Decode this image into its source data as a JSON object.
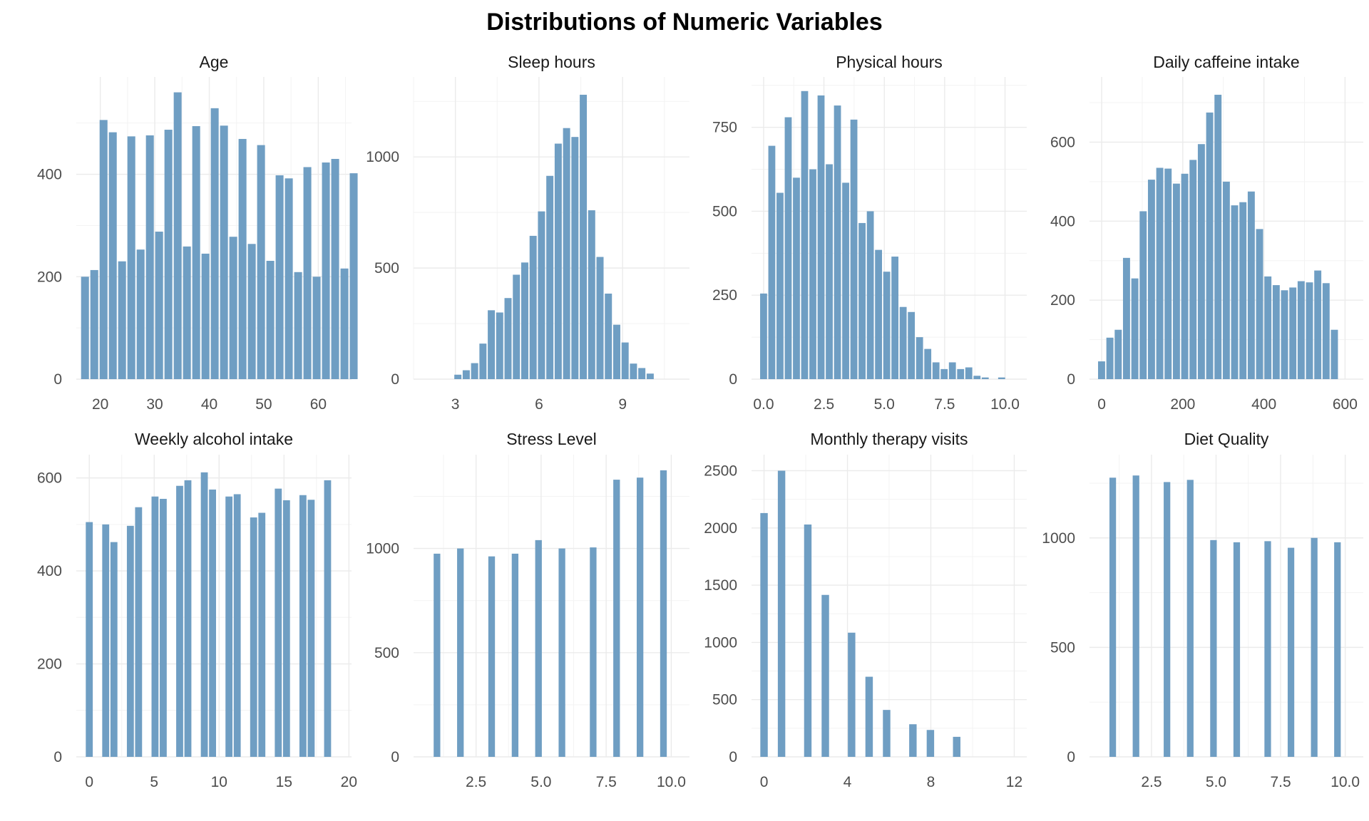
{
  "page_title": "Distributions of Numeric Variables",
  "colors": {
    "bar": "#6f9ec3",
    "grid": "#ebebeb",
    "background": "#ffffff"
  },
  "chart_data": [
    {
      "type": "bar",
      "title": "Age",
      "xlim": [
        15.6,
        66.1
      ],
      "ylim": [
        0,
        590
      ],
      "x_ticks": [
        20,
        30,
        40,
        50,
        60
      ],
      "y_ticks": [
        0,
        200,
        400
      ],
      "bin_start": 17.2,
      "bin_width": 1.7,
      "values": [
        200,
        213,
        506,
        482,
        230,
        474,
        253,
        476,
        288,
        487,
        560,
        259,
        494,
        245,
        529,
        495,
        278,
        469,
        264,
        457,
        231,
        398,
        392,
        209,
        414,
        200,
        423,
        430,
        216,
        402
      ]
    },
    {
      "type": "bar",
      "title": "Sleep hours",
      "xlim": [
        1.5,
        11.4
      ],
      "ylim": [
        0,
        1360
      ],
      "x_ticks": [
        3,
        6,
        9
      ],
      "y_ticks": [
        0,
        500,
        1000
      ],
      "bin_start": 3.09,
      "bin_width": 0.3,
      "values": [
        20,
        40,
        72,
        160,
        310,
        300,
        365,
        470,
        525,
        645,
        755,
        915,
        1060,
        1130,
        1090,
        1280,
        760,
        550,
        385,
        245,
        165,
        70,
        50,
        25
      ]
    },
    {
      "type": "bar",
      "title": "Physical hours",
      "xlim": [
        -0.5,
        10.9
      ],
      "ylim": [
        0,
        900
      ],
      "x_ticks": [
        0.0,
        2.5,
        5.0,
        7.5,
        10.0
      ],
      "y_ticks": [
        0,
        250,
        500,
        750
      ],
      "bin_start": 0,
      "bin_width": 0.34,
      "values": [
        255,
        695,
        555,
        780,
        600,
        858,
        625,
        845,
        640,
        815,
        585,
        773,
        465,
        500,
        385,
        320,
        365,
        215,
        200,
        125,
        90,
        50,
        30,
        50,
        30,
        35,
        10,
        5,
        0,
        5
      ]
    },
    {
      "type": "bar",
      "title": "Daily caffeine intake",
      "xlim": [
        -30,
        645
      ],
      "ylim": [
        0,
        765
      ],
      "x_ticks": [
        0,
        200,
        400,
        600
      ],
      "y_ticks": [
        0,
        200,
        400,
        600
      ],
      "bin_start": -0.2,
      "bin_width": 20.5,
      "values": [
        45,
        105,
        125,
        307,
        255,
        425,
        505,
        535,
        533,
        495,
        520,
        555,
        595,
        675,
        720,
        500,
        440,
        448,
        475,
        380,
        260,
        238,
        225,
        232,
        248,
        245,
        275,
        243,
        125
      ]
    },
    {
      "type": "bar",
      "title": "Weekly alcohol intake",
      "xlim": [
        -1.0,
        20.2
      ],
      "ylim": [
        0,
        650
      ],
      "x_ticks": [
        0,
        5,
        10,
        15,
        20
      ],
      "y_ticks": [
        0,
        200,
        400,
        600
      ],
      "bin_start": 0.0,
      "bin_width": 0.633,
      "values": [
        505,
        0,
        500,
        462,
        0,
        497,
        537,
        0,
        560,
        555,
        0,
        583,
        595,
        0,
        612,
        575,
        0,
        560,
        565,
        0,
        515,
        525,
        0,
        577,
        552,
        0,
        563,
        553,
        0,
        595
      ]
    },
    {
      "type": "bar",
      "title": "Stress Level",
      "xlim": [
        0.1,
        10.7
      ],
      "ylim": [
        0,
        1450
      ],
      "x_ticks": [
        2.5,
        5.0,
        7.5,
        10.0
      ],
      "y_ticks": [
        0,
        500,
        1000
      ],
      "bin_start": 1.0,
      "bin_width": 0.3,
      "values": [
        975,
        0,
        0,
        1000,
        0,
        0,
        0,
        962,
        0,
        0,
        975,
        0,
        0,
        1040,
        0,
        0,
        1000,
        0,
        0,
        0,
        1005,
        0,
        0,
        1330,
        0,
        0,
        1340,
        0,
        0,
        1375
      ]
    },
    {
      "type": "bar",
      "title": "Monthly therapy visits",
      "xlim": [
        -0.6,
        12.6
      ],
      "ylim": [
        0,
        2640
      ],
      "x_ticks": [
        0,
        4,
        8,
        12
      ],
      "y_ticks": [
        0,
        500,
        1000,
        1500,
        2000,
        2500
      ],
      "bin_start": 0.0,
      "bin_width": 0.42,
      "values": [
        2130,
        0,
        2500,
        0,
        0,
        2030,
        0,
        1415,
        0,
        0,
        1085,
        0,
        700,
        0,
        410,
        0,
        0,
        285,
        0,
        235,
        0,
        0,
        175
      ]
    },
    {
      "type": "bar",
      "title": "Diet Quality",
      "xlim": [
        0.1,
        10.7
      ],
      "ylim": [
        0,
        1380
      ],
      "x_ticks": [
        2.5,
        5.0,
        7.5,
        10.0
      ],
      "y_ticks": [
        0,
        500,
        1000
      ],
      "bin_start": 1.0,
      "bin_width": 0.3,
      "values": [
        1275,
        0,
        0,
        1285,
        0,
        0,
        0,
        1255,
        0,
        0,
        1265,
        0,
        0,
        990,
        0,
        0,
        980,
        0,
        0,
        0,
        985,
        0,
        0,
        955,
        0,
        0,
        1000,
        0,
        0,
        980
      ]
    }
  ]
}
